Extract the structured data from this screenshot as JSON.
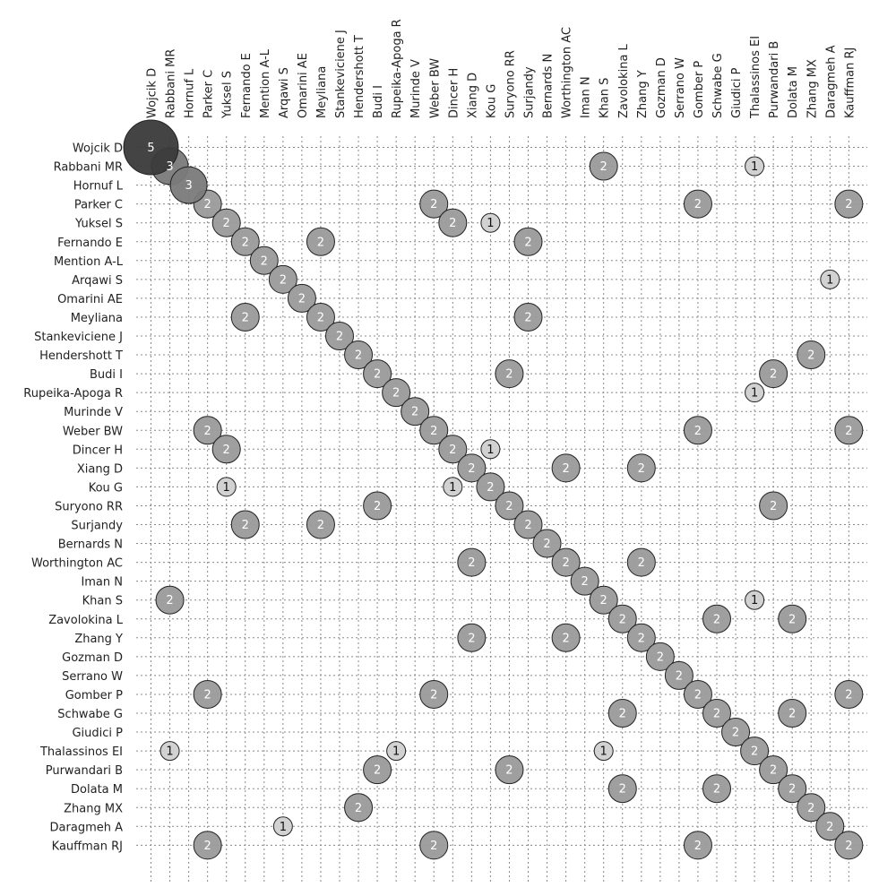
{
  "chart_data": {
    "type": "scatter",
    "title": "",
    "xlabel": "",
    "ylabel": "",
    "grid": true,
    "legend": "none",
    "authors": [
      "Wojcik D",
      "Rabbani MR",
      "Hornuf L",
      "Parker C",
      "Yuksel S",
      "Fernando E",
      "Mention A-L",
      "Arqawi S",
      "Omarini AE",
      "Meyliana",
      "Stankeviciene J",
      "Hendershott T",
      "Budi I",
      "Rupeika-Apoga R",
      "Murinde V",
      "Weber BW",
      "Dincer H",
      "Xiang D",
      "Kou G",
      "Suryono RR",
      "Surjandy",
      "Bernards N",
      "Worthington AC",
      "Iman N",
      "Khan S",
      "Zavolokina L",
      "Zhang Y",
      "Gozman D",
      "Serrano W",
      "Gomber P",
      "Schwabe G",
      "Giudici P",
      "Thalassinos EI",
      "Purwandari B",
      "Dolata M",
      "Zhang MX",
      "Daragmeh A",
      "Kauffman RJ"
    ],
    "points": [
      {
        "row": "Wojcik D",
        "col": "Wojcik D",
        "value": 5
      },
      {
        "row": "Rabbani MR",
        "col": "Rabbani MR",
        "value": 3
      },
      {
        "row": "Rabbani MR",
        "col": "Khan S",
        "value": 2
      },
      {
        "row": "Rabbani MR",
        "col": "Thalassinos EI",
        "value": 1
      },
      {
        "row": "Hornuf L",
        "col": "Hornuf L",
        "value": 3
      },
      {
        "row": "Parker C",
        "col": "Parker C",
        "value": 2
      },
      {
        "row": "Parker C",
        "col": "Weber BW",
        "value": 2
      },
      {
        "row": "Parker C",
        "col": "Gomber P",
        "value": 2
      },
      {
        "row": "Parker C",
        "col": "Kauffman RJ",
        "value": 2
      },
      {
        "row": "Yuksel S",
        "col": "Yuksel S",
        "value": 2
      },
      {
        "row": "Yuksel S",
        "col": "Dincer H",
        "value": 2
      },
      {
        "row": "Yuksel S",
        "col": "Kou G",
        "value": 1
      },
      {
        "row": "Fernando E",
        "col": "Fernando E",
        "value": 2
      },
      {
        "row": "Fernando E",
        "col": "Meyliana",
        "value": 2
      },
      {
        "row": "Fernando E",
        "col": "Surjandy",
        "value": 2
      },
      {
        "row": "Mention A-L",
        "col": "Mention A-L",
        "value": 2
      },
      {
        "row": "Arqawi S",
        "col": "Arqawi S",
        "value": 2
      },
      {
        "row": "Arqawi S",
        "col": "Daragmeh A",
        "value": 1
      },
      {
        "row": "Omarini AE",
        "col": "Omarini AE",
        "value": 2
      },
      {
        "row": "Meyliana",
        "col": "Fernando E",
        "value": 2
      },
      {
        "row": "Meyliana",
        "col": "Meyliana",
        "value": 2
      },
      {
        "row": "Meyliana",
        "col": "Surjandy",
        "value": 2
      },
      {
        "row": "Stankeviciene J",
        "col": "Stankeviciene J",
        "value": 2
      },
      {
        "row": "Hendershott T",
        "col": "Hendershott T",
        "value": 2
      },
      {
        "row": "Hendershott T",
        "col": "Zhang MX",
        "value": 2
      },
      {
        "row": "Budi I",
        "col": "Budi I",
        "value": 2
      },
      {
        "row": "Budi I",
        "col": "Suryono RR",
        "value": 2
      },
      {
        "row": "Budi I",
        "col": "Purwandari B",
        "value": 2
      },
      {
        "row": "Rupeika-Apoga R",
        "col": "Rupeika-Apoga R",
        "value": 2
      },
      {
        "row": "Rupeika-Apoga R",
        "col": "Thalassinos EI",
        "value": 1
      },
      {
        "row": "Murinde V",
        "col": "Murinde V",
        "value": 2
      },
      {
        "row": "Weber BW",
        "col": "Parker C",
        "value": 2
      },
      {
        "row": "Weber BW",
        "col": "Weber BW",
        "value": 2
      },
      {
        "row": "Weber BW",
        "col": "Gomber P",
        "value": 2
      },
      {
        "row": "Weber BW",
        "col": "Kauffman RJ",
        "value": 2
      },
      {
        "row": "Dincer H",
        "col": "Yuksel S",
        "value": 2
      },
      {
        "row": "Dincer H",
        "col": "Dincer H",
        "value": 2
      },
      {
        "row": "Dincer H",
        "col": "Kou G",
        "value": 1
      },
      {
        "row": "Xiang D",
        "col": "Xiang D",
        "value": 2
      },
      {
        "row": "Xiang D",
        "col": "Worthington AC",
        "value": 2
      },
      {
        "row": "Xiang D",
        "col": "Zhang Y",
        "value": 2
      },
      {
        "row": "Kou G",
        "col": "Yuksel S",
        "value": 1
      },
      {
        "row": "Kou G",
        "col": "Dincer H",
        "value": 1
      },
      {
        "row": "Kou G",
        "col": "Kou G",
        "value": 2
      },
      {
        "row": "Suryono RR",
        "col": "Budi I",
        "value": 2
      },
      {
        "row": "Suryono RR",
        "col": "Suryono RR",
        "value": 2
      },
      {
        "row": "Suryono RR",
        "col": "Purwandari B",
        "value": 2
      },
      {
        "row": "Surjandy",
        "col": "Fernando E",
        "value": 2
      },
      {
        "row": "Surjandy",
        "col": "Meyliana",
        "value": 2
      },
      {
        "row": "Surjandy",
        "col": "Surjandy",
        "value": 2
      },
      {
        "row": "Bernards N",
        "col": "Bernards N",
        "value": 2
      },
      {
        "row": "Worthington AC",
        "col": "Xiang D",
        "value": 2
      },
      {
        "row": "Worthington AC",
        "col": "Worthington AC",
        "value": 2
      },
      {
        "row": "Worthington AC",
        "col": "Zhang Y",
        "value": 2
      },
      {
        "row": "Iman N",
        "col": "Iman N",
        "value": 2
      },
      {
        "row": "Khan S",
        "col": "Rabbani MR",
        "value": 2
      },
      {
        "row": "Khan S",
        "col": "Khan S",
        "value": 2
      },
      {
        "row": "Khan S",
        "col": "Thalassinos EI",
        "value": 1
      },
      {
        "row": "Zavolokina L",
        "col": "Zavolokina L",
        "value": 2
      },
      {
        "row": "Zavolokina L",
        "col": "Schwabe G",
        "value": 2
      },
      {
        "row": "Zavolokina L",
        "col": "Dolata M",
        "value": 2
      },
      {
        "row": "Zhang Y",
        "col": "Xiang D",
        "value": 2
      },
      {
        "row": "Zhang Y",
        "col": "Worthington AC",
        "value": 2
      },
      {
        "row": "Zhang Y",
        "col": "Zhang Y",
        "value": 2
      },
      {
        "row": "Gozman D",
        "col": "Gozman D",
        "value": 2
      },
      {
        "row": "Serrano W",
        "col": "Serrano W",
        "value": 2
      },
      {
        "row": "Gomber P",
        "col": "Parker C",
        "value": 2
      },
      {
        "row": "Gomber P",
        "col": "Weber BW",
        "value": 2
      },
      {
        "row": "Gomber P",
        "col": "Gomber P",
        "value": 2
      },
      {
        "row": "Gomber P",
        "col": "Kauffman RJ",
        "value": 2
      },
      {
        "row": "Schwabe G",
        "col": "Zavolokina L",
        "value": 2
      },
      {
        "row": "Schwabe G",
        "col": "Schwabe G",
        "value": 2
      },
      {
        "row": "Schwabe G",
        "col": "Dolata M",
        "value": 2
      },
      {
        "row": "Giudici P",
        "col": "Giudici P",
        "value": 2
      },
      {
        "row": "Thalassinos EI",
        "col": "Rabbani MR",
        "value": 1
      },
      {
        "row": "Thalassinos EI",
        "col": "Rupeika-Apoga R",
        "value": 1
      },
      {
        "row": "Thalassinos EI",
        "col": "Khan S",
        "value": 1
      },
      {
        "row": "Thalassinos EI",
        "col": "Thalassinos EI",
        "value": 2
      },
      {
        "row": "Purwandari B",
        "col": "Budi I",
        "value": 2
      },
      {
        "row": "Purwandari B",
        "col": "Suryono RR",
        "value": 2
      },
      {
        "row": "Purwandari B",
        "col": "Purwandari B",
        "value": 2
      },
      {
        "row": "Dolata M",
        "col": "Zavolokina L",
        "value": 2
      },
      {
        "row": "Dolata M",
        "col": "Schwabe G",
        "value": 2
      },
      {
        "row": "Dolata M",
        "col": "Dolata M",
        "value": 2
      },
      {
        "row": "Zhang MX",
        "col": "Hendershott T",
        "value": 2
      },
      {
        "row": "Zhang MX",
        "col": "Zhang MX",
        "value": 2
      },
      {
        "row": "Daragmeh A",
        "col": "Arqawi S",
        "value": 1
      },
      {
        "row": "Daragmeh A",
        "col": "Daragmeh A",
        "value": 2
      },
      {
        "row": "Kauffman RJ",
        "col": "Parker C",
        "value": 2
      },
      {
        "row": "Kauffman RJ",
        "col": "Weber BW",
        "value": 2
      },
      {
        "row": "Kauffman RJ",
        "col": "Gomber P",
        "value": 2
      },
      {
        "row": "Kauffman RJ",
        "col": "Kauffman RJ",
        "value": 2
      }
    ],
    "colors": {
      "5": "#3a3a3a",
      "3": "#7a7a7a",
      "2": "#9a9a9a",
      "1": "#d0d0d0",
      "stroke": "#222222",
      "text_dark": "#111111",
      "text_light": "#ffffff"
    }
  }
}
